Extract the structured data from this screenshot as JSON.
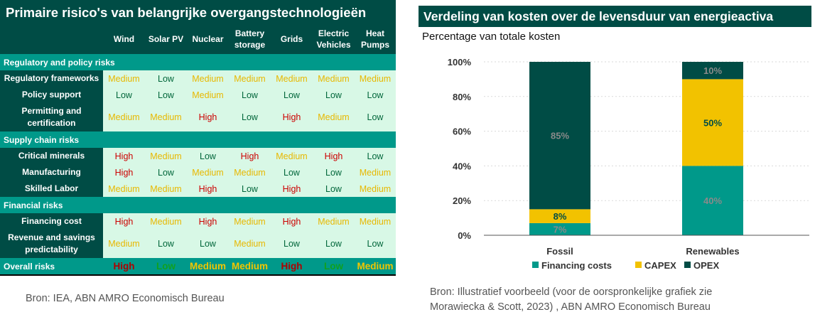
{
  "left": {
    "title": "Primaire risico's van belangrijke overgangstechnologieën",
    "columns": [
      [
        "Wind"
      ],
      [
        "Solar PV"
      ],
      [
        "Nuclear"
      ],
      [
        "Battery",
        "storage"
      ],
      [
        "Grids"
      ],
      [
        "Electric",
        "Vehicles"
      ],
      [
        "Heat",
        "Pumps"
      ]
    ],
    "sections": [
      {
        "title": "Regulatory and policy risks",
        "rows": [
          {
            "label": [
              "Regulatory frameworks"
            ],
            "values": [
              "Medium",
              "Low",
              "Medium",
              "Medium",
              "Medium",
              "Medium",
              "Medium"
            ]
          },
          {
            "label": [
              "Policy support"
            ],
            "values": [
              "Low",
              "Low",
              "Medium",
              "Low",
              "Low",
              "Low",
              "Low"
            ]
          },
          {
            "label": [
              "Permitting and",
              "certification"
            ],
            "values": [
              "Medium",
              "Medium",
              "High",
              "Low",
              "High",
              "Medium",
              "Low"
            ]
          }
        ]
      },
      {
        "title": "Supply chain risks",
        "rows": [
          {
            "label": [
              "Critical minerals"
            ],
            "values": [
              "High",
              "Medium",
              "Low",
              "High",
              "Medium",
              "High",
              "Low"
            ]
          },
          {
            "label": [
              "Manufacturing"
            ],
            "values": [
              "High",
              "Low",
              "Medium",
              "Medium",
              "Low",
              "Low",
              "Medium"
            ]
          },
          {
            "label": [
              "Skilled Labor"
            ],
            "values": [
              "Medium",
              "Medium",
              "High",
              "Low",
              "High",
              "Low",
              "Medium"
            ]
          }
        ]
      },
      {
        "title": "Financial risks",
        "rows": [
          {
            "label": [
              "Financing cost"
            ],
            "values": [
              "High",
              "Medium",
              "High",
              "Medium",
              "High",
              "Medium",
              "Medium"
            ]
          },
          {
            "label": [
              "Revenue and savings",
              "predictability"
            ],
            "values": [
              "Medium",
              "Low",
              "Low",
              "Medium",
              "Low",
              "Low",
              "Low"
            ]
          }
        ]
      }
    ],
    "overall": {
      "label": "Overall risks",
      "values": [
        "High",
        "Low",
        "Medium",
        "Medium",
        "High",
        "Low",
        "Medium"
      ]
    },
    "source": "Bron: IEA, ABN AMRO Economisch Bureau"
  },
  "right": {
    "title": "Verdeling van kosten over de levensduur van energieactiva",
    "subtitle": "Percentage van totale kosten",
    "source_line1": "Bron: Illustratief voorbeeld (voor de oorspronkelijke grafiek zie",
    "source_line2": "Morawiecka & Scott, 2023) , ABN AMRO Economisch Bureau"
  },
  "colors": {
    "dark_green": "#004c45",
    "teal": "#00998a",
    "yellow": "#f2c200",
    "cell_bg": "#d8f8e6",
    "high": "#cc0000",
    "medium": "#e8b800",
    "low": "#00663a"
  },
  "chart_data": {
    "type": "bar",
    "stacked": true,
    "categories": [
      "Fossil",
      "Renewables"
    ],
    "series": [
      {
        "name": "Financing costs",
        "color": "#00998a",
        "values": [
          7,
          40
        ],
        "labels": [
          "7%",
          "40%"
        ]
      },
      {
        "name": "CAPEX",
        "color": "#f2c200",
        "values": [
          8,
          50
        ],
        "labels": [
          "8%",
          "50%"
        ]
      },
      {
        "name": "OPEX",
        "color": "#004c45",
        "values": [
          85,
          10
        ],
        "labels": [
          "85%",
          "10%"
        ]
      }
    ],
    "ylim": [
      0,
      100
    ],
    "yticks": [
      0,
      20,
      40,
      60,
      80,
      100
    ],
    "ytick_labels": [
      "0%",
      "20%",
      "40%",
      "60%",
      "80%",
      "100%"
    ],
    "legend_position": "bottom",
    "title": "Verdeling van kosten over de levensduur van energieactiva",
    "ylabel": "Percentage van totale kosten",
    "xlabel": ""
  }
}
